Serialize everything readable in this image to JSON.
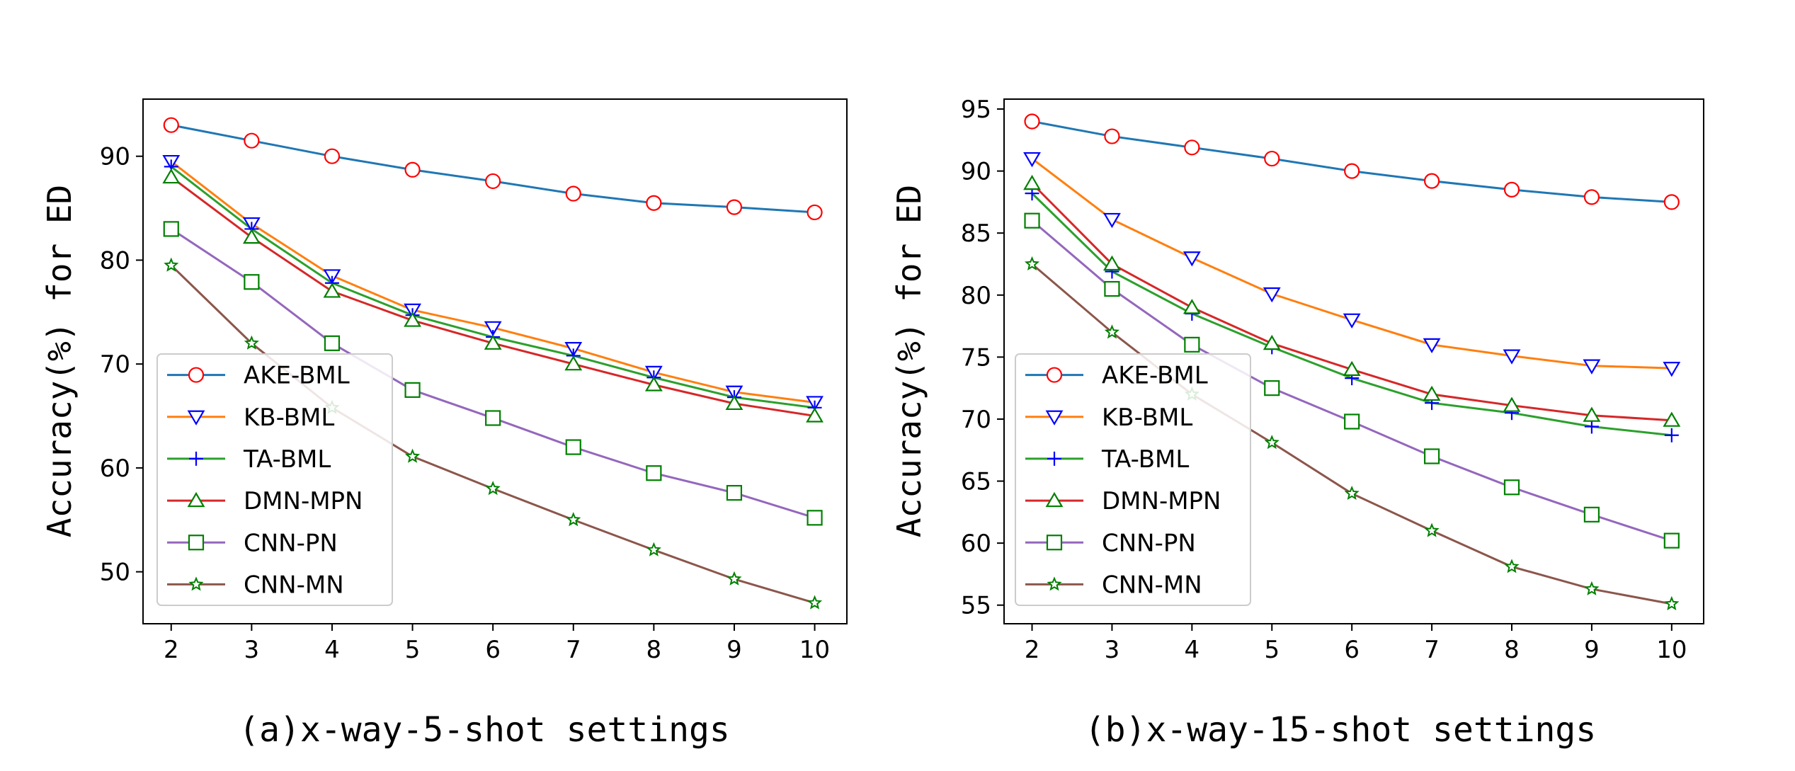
{
  "chart_data": [
    {
      "type": "line",
      "title": "",
      "caption": "(a)x-way-5-shot settings",
      "xlabel": "",
      "ylabel": "Accuracy(%)  for ED",
      "x": [
        2,
        3,
        4,
        5,
        6,
        7,
        8,
        9,
        10
      ],
      "xticks": [
        "2",
        "3",
        "4",
        "5",
        "6",
        "7",
        "8",
        "9",
        "10"
      ],
      "yticks": [
        50,
        60,
        70,
        80,
        90
      ],
      "xlim": [
        1.65,
        10.4
      ],
      "ylim": [
        45,
        95.5
      ],
      "legend_position": "lower-left",
      "grid": false,
      "series": [
        {
          "name": "AKE-BML",
          "color": "#1f77b4",
          "marker": "circle",
          "marker_color": "#ff0000",
          "values": [
            93.0,
            91.5,
            90.0,
            88.7,
            87.6,
            86.4,
            85.5,
            85.1,
            84.6
          ]
        },
        {
          "name": "KB-BML",
          "color": "#ff7f0e",
          "marker": "triangle-down",
          "marker_color": "#0000ff",
          "values": [
            89.5,
            83.5,
            78.5,
            75.2,
            73.5,
            71.5,
            69.2,
            67.3,
            66.3
          ]
        },
        {
          "name": "TA-BML",
          "color": "#2ca02c",
          "marker": "plus",
          "marker_color": "#0000ff",
          "values": [
            89.0,
            83.0,
            77.8,
            74.7,
            72.6,
            70.8,
            68.7,
            66.8,
            65.8
          ]
        },
        {
          "name": "DMN-MPN",
          "color": "#d62728",
          "marker": "triangle-up",
          "marker_color": "#008000",
          "values": [
            88.0,
            82.2,
            77.0,
            74.2,
            72.0,
            70.0,
            68.0,
            66.2,
            65.0
          ]
        },
        {
          "name": "CNN-PN",
          "color": "#9467bd",
          "marker": "square",
          "marker_color": "#008000",
          "values": [
            83.0,
            77.9,
            72.0,
            67.5,
            64.8,
            62.0,
            59.5,
            57.6,
            55.2
          ]
        },
        {
          "name": "CNN-MN",
          "color": "#8c564b",
          "marker": "star",
          "marker_color": "#008000",
          "values": [
            79.5,
            72.0,
            65.8,
            61.1,
            58.0,
            55.0,
            52.1,
            49.3,
            47.0
          ]
        }
      ]
    },
    {
      "type": "line",
      "title": "",
      "caption": "(b)x-way-15-shot settings",
      "xlabel": "",
      "ylabel": "Accuracy(%)  for ED",
      "x": [
        2,
        3,
        4,
        5,
        6,
        7,
        8,
        9,
        10
      ],
      "xticks": [
        "2",
        "3",
        "4",
        "5",
        "6",
        "7",
        "8",
        "9",
        "10"
      ],
      "yticks": [
        55,
        60,
        65,
        70,
        75,
        80,
        85,
        90,
        95
      ],
      "xlim": [
        1.65,
        10.4
      ],
      "ylim": [
        53.5,
        95.8
      ],
      "legend_position": "lower-left",
      "grid": false,
      "series": [
        {
          "name": "AKE-BML",
          "color": "#1f77b4",
          "marker": "circle",
          "marker_color": "#ff0000",
          "values": [
            94.0,
            92.8,
            91.9,
            91.0,
            90.0,
            89.2,
            88.5,
            87.9,
            87.5
          ]
        },
        {
          "name": "KB-BML",
          "color": "#ff7f0e",
          "marker": "triangle-down",
          "marker_color": "#0000ff",
          "values": [
            91.0,
            86.1,
            83.0,
            80.1,
            78.0,
            76.0,
            75.1,
            74.3,
            74.1
          ]
        },
        {
          "name": "TA-BML",
          "color": "#2ca02c",
          "marker": "plus",
          "marker_color": "#0000ff",
          "values": [
            88.2,
            81.9,
            78.5,
            75.8,
            73.3,
            71.3,
            70.5,
            69.4,
            68.7
          ]
        },
        {
          "name": "DMN-MPN",
          "color": "#d62728",
          "marker": "triangle-up",
          "marker_color": "#008000",
          "values": [
            89.0,
            82.5,
            79.0,
            76.1,
            74.0,
            72.0,
            71.1,
            70.3,
            69.9
          ]
        },
        {
          "name": "CNN-PN",
          "color": "#9467bd",
          "marker": "square",
          "marker_color": "#008000",
          "values": [
            86.0,
            80.5,
            76.0,
            72.5,
            69.8,
            67.0,
            64.5,
            62.3,
            60.2
          ]
        },
        {
          "name": "CNN-MN",
          "color": "#8c564b",
          "marker": "star",
          "marker_color": "#008000",
          "values": [
            82.5,
            77.0,
            72.0,
            68.1,
            64.0,
            61.0,
            58.1,
            56.3,
            55.1
          ]
        }
      ]
    }
  ]
}
